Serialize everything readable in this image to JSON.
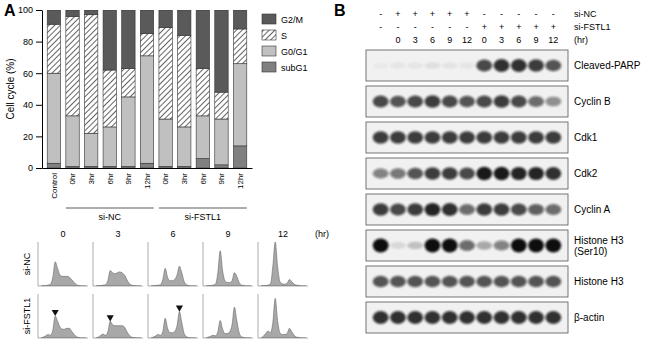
{
  "panel_labels": [
    "A",
    "B"
  ],
  "chart_data": [
    {
      "type": "bar",
      "stacked": true,
      "grid": false,
      "legend": "right",
      "y_label": "Cell cycle (%)",
      "categories": [
        "Control",
        "0hr",
        "3hr",
        "6hr",
        "9hr",
        "12hr",
        "0hr",
        "3hr",
        "6hr",
        "9hr",
        "12hr"
      ],
      "groups": [
        null,
        "si-NC",
        "si-NC",
        "si-NC",
        "si-NC",
        "si-NC",
        "si-FSTL1",
        "si-FSTL1",
        "si-FSTL1",
        "si-FSTL1",
        "si-FSTL1"
      ],
      "ylim": [
        0,
        100
      ],
      "yticks": [
        0,
        20,
        40,
        60,
        80,
        100
      ],
      "series": [
        {
          "name": "subG1",
          "color": "#808080",
          "values": [
            3,
            1,
            1,
            1,
            1,
            3,
            1,
            1,
            6,
            2,
            14
          ]
        },
        {
          "name": "G0/G1",
          "color": "#c0c0c0",
          "values": [
            57,
            32,
            21,
            25,
            44,
            68,
            30,
            25,
            27,
            29,
            52
          ]
        },
        {
          "name": "S",
          "color": "#ffffff",
          "line_style": "hatch",
          "values": [
            31,
            63,
            75,
            36,
            18,
            14,
            58,
            58,
            30,
            17,
            22
          ]
        },
        {
          "name": "G2/M",
          "color": "#5a5a5a",
          "values": [
            9,
            4,
            3,
            38,
            37,
            15,
            11,
            16,
            37,
            52,
            12
          ]
        }
      ]
    },
    {
      "type": "area",
      "tick_labels": false,
      "color": "#a8a8a8",
      "row_labels": [
        "si-NC",
        "si-FSTL1"
      ],
      "col_labels": [
        "0",
        "3",
        "6",
        "9",
        "12"
      ],
      "col_unit": "(hr)",
      "ylim": [
        0,
        100
      ],
      "panels": [
        [
          {
            "values": [
              0,
              1,
              1,
              2,
              4,
              20,
              55,
              40,
              25,
              22,
              22,
              22,
              20,
              14,
              8,
              3,
              1,
              0,
              0,
              0
            ]
          },
          {
            "values": [
              0,
              1,
              1,
              2,
              3,
              12,
              35,
              30,
              28,
              30,
              32,
              30,
              25,
              15,
              6,
              2,
              1,
              0,
              0,
              0
            ]
          },
          {
            "values": [
              0,
              1,
              1,
              2,
              3,
              15,
              40,
              20,
              12,
              12,
              15,
              25,
              45,
              30,
              10,
              3,
              1,
              0,
              0,
              0
            ]
          },
          {
            "values": [
              0,
              1,
              1,
              2,
              4,
              30,
              80,
              35,
              12,
              8,
              8,
              12,
              30,
              22,
              8,
              2,
              1,
              0,
              0,
              0
            ]
          },
          {
            "values": [
              0,
              1,
              1,
              2,
              5,
              45,
              100,
              45,
              10,
              5,
              4,
              6,
              15,
              10,
              4,
              2,
              1,
              0,
              0,
              0
            ]
          }
        ],
        [
          {
            "values": [
              0,
              2,
              5,
              8,
              6,
              18,
              50,
              38,
              25,
              20,
              20,
              22,
              22,
              15,
              8,
              3,
              1,
              0,
              0,
              0
            ],
            "marker": "triangle"
          },
          {
            "values": [
              0,
              2,
              6,
              9,
              6,
              14,
              38,
              30,
              28,
              28,
              28,
              28,
              25,
              15,
              7,
              2,
              1,
              0,
              0,
              0
            ],
            "marker": "triangle"
          },
          {
            "values": [
              0,
              2,
              5,
              8,
              6,
              15,
              45,
              22,
              12,
              12,
              15,
              28,
              60,
              35,
              10,
              3,
              1,
              0,
              0,
              0
            ],
            "marker": "triangle"
          },
          {
            "values": [
              0,
              2,
              4,
              6,
              5,
              14,
              40,
              20,
              10,
              10,
              14,
              30,
              70,
              40,
              12,
              3,
              1,
              0,
              0,
              0
            ]
          },
          {
            "values": [
              0,
              4,
              10,
              16,
              12,
              35,
              90,
              40,
              12,
              8,
              8,
              10,
              22,
              14,
              6,
              2,
              1,
              0,
              0,
              0
            ]
          }
        ]
      ]
    }
  ],
  "blot": {
    "conditions": [
      {
        "label": "si-NC",
        "signs": [
          "-",
          "+",
          "+",
          "+",
          "+",
          "+",
          "-",
          "-",
          "-",
          "-",
          "-"
        ]
      },
      {
        "label": "si-FSTL1",
        "signs": [
          "-",
          "-",
          "-",
          "-",
          "-",
          "-",
          "+",
          "+",
          "+",
          "+",
          "+"
        ]
      }
    ],
    "times": [
      null,
      "0",
      "3",
      "6",
      "9",
      "12",
      "0",
      "3",
      "6",
      "9",
      "12"
    ],
    "time_unit": "(hr)",
    "bands": [
      {
        "label": [
          "Cleaved-PARP"
        ],
        "intensity": [
          0.03,
          0.05,
          0.05,
          0.08,
          0.06,
          0.05,
          0.75,
          0.85,
          0.85,
          0.8,
          0.7
        ]
      },
      {
        "label": [
          "Cyclin B"
        ],
        "intensity": [
          0.75,
          0.7,
          0.75,
          0.8,
          0.75,
          0.7,
          0.75,
          0.8,
          0.75,
          0.6,
          0.45
        ]
      },
      {
        "label": [
          "Cdk1"
        ],
        "intensity": [
          0.8,
          0.8,
          0.8,
          0.8,
          0.8,
          0.8,
          0.8,
          0.8,
          0.8,
          0.8,
          0.8
        ]
      },
      {
        "label": [
          "Cdk2"
        ],
        "intensity": [
          0.5,
          0.55,
          0.7,
          0.8,
          0.8,
          0.75,
          0.95,
          0.95,
          0.9,
          0.9,
          0.85
        ]
      },
      {
        "label": [
          "Cyclin A"
        ],
        "intensity": [
          0.8,
          0.75,
          0.8,
          0.9,
          0.85,
          0.6,
          0.8,
          0.8,
          0.75,
          0.65,
          0.6
        ]
      },
      {
        "label": [
          "Histone H3",
          "(Ser10)"
        ],
        "intensity": [
          1,
          0.1,
          0.2,
          1,
          1,
          0.6,
          0.3,
          0.5,
          1,
          1,
          1
        ]
      },
      {
        "label": [
          "Histone H3"
        ],
        "intensity": [
          0.7,
          0.7,
          0.7,
          0.7,
          0.7,
          0.7,
          0.7,
          0.7,
          0.7,
          0.7,
          0.7
        ]
      },
      {
        "label": [
          "β-actin"
        ],
        "intensity": [
          0.85,
          0.85,
          0.85,
          0.85,
          0.85,
          0.85,
          0.85,
          0.85,
          0.85,
          0.85,
          0.85
        ]
      }
    ]
  }
}
